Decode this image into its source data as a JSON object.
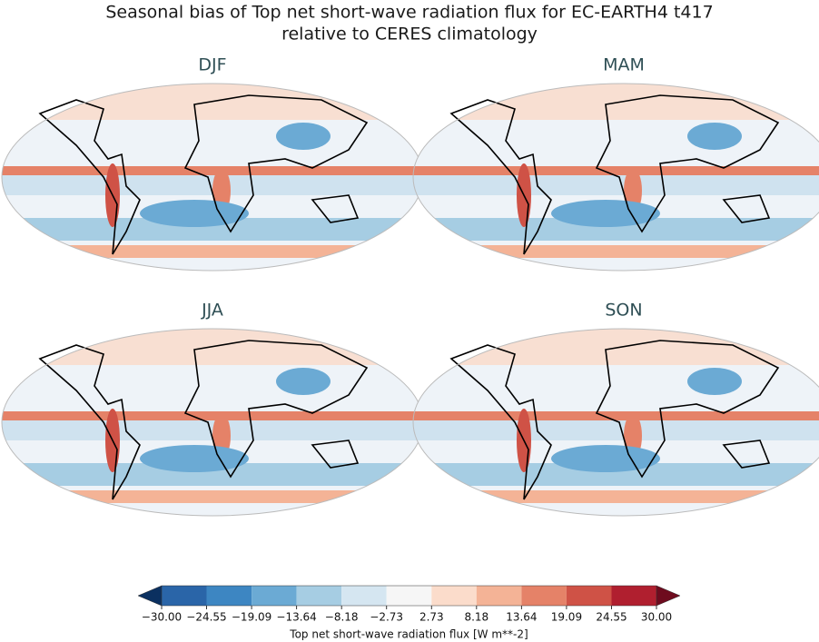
{
  "header": {
    "title": "Seasonal bias of Top net short-wave radiation flux for EC-EARTH4 t417",
    "subtitle": "relative to CERES climatology"
  },
  "panels": [
    {
      "title": "DJF"
    },
    {
      "title": "MAM"
    },
    {
      "title": "JJA"
    },
    {
      "title": "SON"
    }
  ],
  "colorbar": {
    "label": "Top net short-wave radiation flux [W m**-2]",
    "ticks": [
      {
        "value": -30,
        "label": "−30.00"
      },
      {
        "value": -24.55,
        "label": "−24.55"
      },
      {
        "value": -19.09,
        "label": "−19.09"
      },
      {
        "value": -13.64,
        "label": "−13.64"
      },
      {
        "value": -8.18,
        "label": "−8.18"
      },
      {
        "value": -2.73,
        "label": "−2.73"
      },
      {
        "value": 2.73,
        "label": "2.73"
      },
      {
        "value": 8.18,
        "label": "8.18"
      },
      {
        "value": 13.64,
        "label": "13.64"
      },
      {
        "value": 19.09,
        "label": "19.09"
      },
      {
        "value": 24.55,
        "label": "24.55"
      },
      {
        "value": 30,
        "label": "30.00"
      }
    ],
    "colors": [
      "#0b3060",
      "#2a65a8",
      "#3d86c2",
      "#6baad4",
      "#a6cde3",
      "#d5e6f1",
      "#f6f6f6",
      "#fbdccb",
      "#f4b396",
      "#e58268",
      "#cf5246",
      "#b01f2f",
      "#6e0b1e"
    ]
  }
}
